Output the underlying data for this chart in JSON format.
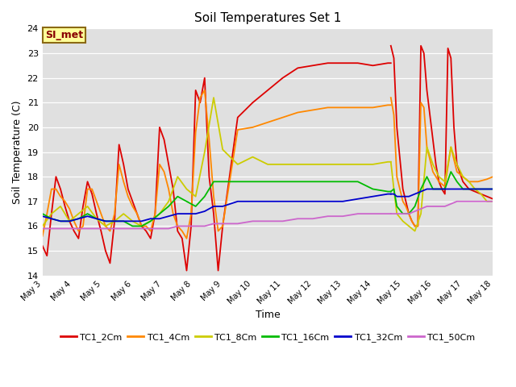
{
  "title": "Soil Temperatures Set 1",
  "xlabel": "Time",
  "ylabel": "Soil Temperature (C)",
  "ylim": [
    14.0,
    24.0
  ],
  "yticks": [
    14.0,
    15.0,
    16.0,
    17.0,
    18.0,
    19.0,
    20.0,
    21.0,
    22.0,
    23.0,
    24.0
  ],
  "bg_color": "#e0e0e0",
  "annotation_text": "SI_met",
  "annotation_bg": "#ffff99",
  "annotation_border": "#8b6914",
  "series": {
    "TC1_2Cm": {
      "color": "#dd0000",
      "segments": [
        {
          "x": [
            3.0,
            3.15,
            3.3,
            3.45,
            3.6,
            3.75,
            3.9,
            4.05,
            4.2,
            4.35,
            4.5,
            4.65,
            4.8,
            4.95,
            5.1,
            5.25,
            5.4,
            5.55,
            5.7,
            5.85,
            6.0,
            6.15,
            6.3,
            6.45,
            6.6,
            6.75,
            6.9,
            7.05,
            7.2,
            7.35,
            7.5,
            7.65,
            7.8,
            7.95,
            8.1,
            8.25,
            8.4,
            8.55,
            8.7,
            8.85,
            9.0
          ],
          "y": [
            15.2,
            14.8,
            16.5,
            18.0,
            17.5,
            16.8,
            16.2,
            15.8,
            15.5,
            16.8,
            17.8,
            17.3,
            16.5,
            15.8,
            15.0,
            14.5,
            16.2,
            19.3,
            18.5,
            17.5,
            17.0,
            16.5,
            16.0,
            15.8,
            15.5,
            16.5,
            20.0,
            19.5,
            18.5,
            17.5,
            15.8,
            15.5,
            14.2,
            16.0,
            21.5,
            21.0,
            22.0,
            18.0,
            16.5,
            14.2,
            16.0
          ]
        },
        {
          "x": [
            9.0,
            9.5,
            10.0,
            10.5,
            11.0,
            11.5,
            12.0,
            12.5,
            13.0,
            13.5,
            14.0,
            14.5,
            14.6
          ],
          "y": [
            16.0,
            20.4,
            21.0,
            21.5,
            22.0,
            22.4,
            22.5,
            22.6,
            22.6,
            22.6,
            22.5,
            22.6,
            22.6
          ]
        },
        {
          "x": [
            14.6,
            14.7,
            14.8,
            15.0,
            15.1,
            15.2,
            15.3,
            15.4,
            15.5,
            15.6,
            15.7,
            15.8,
            16.0,
            16.1,
            16.2,
            16.3,
            16.4,
            16.5,
            16.6,
            16.7,
            16.8,
            17.0,
            17.2,
            17.4,
            17.6,
            17.8,
            18.0
          ],
          "y": [
            23.3,
            22.8,
            20.0,
            17.5,
            17.0,
            16.5,
            16.2,
            16.0,
            16.0,
            23.3,
            23.0,
            21.5,
            19.5,
            18.5,
            17.8,
            17.5,
            17.3,
            23.2,
            22.8,
            20.0,
            18.5,
            17.8,
            17.5,
            17.4,
            17.3,
            17.2,
            17.1
          ]
        }
      ]
    },
    "TC1_4Cm": {
      "color": "#ff8800",
      "segments": [
        {
          "x": [
            3.0,
            3.15,
            3.3,
            3.45,
            3.6,
            3.75,
            3.9,
            4.05,
            4.2,
            4.35,
            4.5,
            4.65,
            4.8,
            4.95,
            5.1,
            5.25,
            5.4,
            5.55,
            5.7,
            5.85,
            6.0,
            6.15,
            6.3,
            6.45,
            6.6,
            6.75,
            6.9,
            7.05,
            7.2,
            7.35,
            7.5,
            7.65,
            7.8,
            7.95,
            8.1,
            8.25,
            8.4,
            8.55,
            8.7,
            8.85,
            9.0
          ],
          "y": [
            15.6,
            16.5,
            17.5,
            17.5,
            17.2,
            17.0,
            16.7,
            16.2,
            15.8,
            16.0,
            17.5,
            17.5,
            17.0,
            16.5,
            16.0,
            15.8,
            16.5,
            18.5,
            17.8,
            17.2,
            16.8,
            16.5,
            16.0,
            16.0,
            15.8,
            16.5,
            18.5,
            18.2,
            17.5,
            16.5,
            16.0,
            15.8,
            15.5,
            16.5,
            19.8,
            21.2,
            21.5,
            19.5,
            17.2,
            15.8,
            16.0
          ]
        },
        {
          "x": [
            9.0,
            9.5,
            10.0,
            10.5,
            11.0,
            11.5,
            12.0,
            12.5,
            13.0,
            13.5,
            14.0,
            14.5,
            14.6
          ],
          "y": [
            16.0,
            19.9,
            20.0,
            20.2,
            20.4,
            20.6,
            20.7,
            20.8,
            20.8,
            20.8,
            20.8,
            20.9,
            20.9
          ]
        },
        {
          "x": [
            14.6,
            14.7,
            14.8,
            15.0,
            15.1,
            15.2,
            15.3,
            15.4,
            15.5,
            15.6,
            15.7,
            15.8,
            16.0,
            16.2,
            16.4,
            16.6,
            16.8,
            17.0,
            17.2,
            17.5,
            17.8,
            18.0
          ],
          "y": [
            21.2,
            20.5,
            18.0,
            17.0,
            16.8,
            16.5,
            16.2,
            16.0,
            16.0,
            21.0,
            20.8,
            19.2,
            18.2,
            17.8,
            17.6,
            19.2,
            18.2,
            18.0,
            17.8,
            17.8,
            17.9,
            18.0
          ]
        }
      ]
    },
    "TC1_8Cm": {
      "color": "#cccc00",
      "segments": [
        {
          "x": [
            3.0,
            3.3,
            3.6,
            3.9,
            4.2,
            4.5,
            4.8,
            5.1,
            5.4,
            5.7,
            6.0,
            6.3,
            6.6,
            6.9,
            7.2,
            7.5,
            7.8,
            8.1,
            8.4,
            8.7,
            9.0,
            9.5,
            10.0,
            10.5,
            11.0,
            11.5,
            12.0,
            12.5,
            13.0,
            13.5,
            14.0,
            14.5,
            14.6
          ],
          "y": [
            16.0,
            16.5,
            16.8,
            16.2,
            16.5,
            16.8,
            16.3,
            16.0,
            16.2,
            16.5,
            16.2,
            16.0,
            16.2,
            16.5,
            17.0,
            18.0,
            17.5,
            17.2,
            19.0,
            21.2,
            19.1,
            18.5,
            18.8,
            18.5,
            18.5,
            18.5,
            18.5,
            18.5,
            18.5,
            18.5,
            18.5,
            18.6,
            18.6
          ]
        },
        {
          "x": [
            14.6,
            14.7,
            14.8,
            15.0,
            15.2,
            15.4,
            15.6,
            15.8,
            16.0,
            16.2,
            16.4,
            16.6,
            16.8,
            17.0,
            17.2,
            17.4,
            17.6,
            17.8,
            18.0
          ],
          "y": [
            18.6,
            17.5,
            16.5,
            16.2,
            16.0,
            15.8,
            16.5,
            19.2,
            18.5,
            18.0,
            17.8,
            19.2,
            18.5,
            18.0,
            17.8,
            17.5,
            17.3,
            17.0,
            17.0
          ]
        }
      ]
    },
    "TC1_16Cm": {
      "color": "#00bb00",
      "segments": [
        {
          "x": [
            3.0,
            3.3,
            3.6,
            3.9,
            4.2,
            4.5,
            4.8,
            5.1,
            5.4,
            5.7,
            6.0,
            6.3,
            6.6,
            6.9,
            7.2,
            7.5,
            7.8,
            8.1,
            8.4,
            8.7,
            9.0,
            9.5,
            10.0,
            10.5,
            11.0,
            11.5,
            12.0,
            12.5,
            13.0,
            13.5,
            14.0,
            14.5,
            14.6
          ],
          "y": [
            16.5,
            16.3,
            16.2,
            16.2,
            16.3,
            16.5,
            16.3,
            16.2,
            16.2,
            16.2,
            16.0,
            16.0,
            16.2,
            16.5,
            16.8,
            17.2,
            17.0,
            16.8,
            17.2,
            17.8,
            17.8,
            17.8,
            17.8,
            17.8,
            17.8,
            17.8,
            17.8,
            17.8,
            17.8,
            17.8,
            17.5,
            17.4,
            17.4
          ]
        },
        {
          "x": [
            14.6,
            14.7,
            14.8,
            15.0,
            15.2,
            15.4,
            15.6,
            15.8,
            16.0,
            16.2,
            16.4,
            16.6,
            16.8,
            17.0,
            17.2,
            17.5,
            17.8,
            18.0
          ],
          "y": [
            17.4,
            17.5,
            16.8,
            16.5,
            16.5,
            16.8,
            17.5,
            18.0,
            17.5,
            17.5,
            17.5,
            18.2,
            17.8,
            17.5,
            17.5,
            17.5,
            17.5,
            17.5
          ]
        }
      ]
    },
    "TC1_32Cm": {
      "color": "#0000cc",
      "segments": [
        {
          "x": [
            3.0,
            3.3,
            3.6,
            3.9,
            4.2,
            4.5,
            4.8,
            5.1,
            5.4,
            5.7,
            6.0,
            6.3,
            6.6,
            6.9,
            7.2,
            7.5,
            7.8,
            8.1,
            8.4,
            8.7,
            9.0,
            9.5,
            10.0,
            10.5,
            11.0,
            11.5,
            12.0,
            12.5,
            13.0,
            13.5,
            14.0,
            14.5,
            14.6
          ],
          "y": [
            16.4,
            16.3,
            16.2,
            16.2,
            16.3,
            16.4,
            16.3,
            16.2,
            16.2,
            16.2,
            16.2,
            16.2,
            16.3,
            16.3,
            16.4,
            16.5,
            16.5,
            16.5,
            16.6,
            16.8,
            16.8,
            17.0,
            17.0,
            17.0,
            17.0,
            17.0,
            17.0,
            17.0,
            17.0,
            17.1,
            17.2,
            17.3,
            17.3
          ]
        },
        {
          "x": [
            14.6,
            14.7,
            14.8,
            15.0,
            15.2,
            15.4,
            15.6,
            15.8,
            16.0,
            16.2,
            16.4,
            16.6,
            16.8,
            17.0,
            17.2,
            17.5,
            17.8,
            18.0
          ],
          "y": [
            17.3,
            17.3,
            17.2,
            17.2,
            17.2,
            17.3,
            17.4,
            17.5,
            17.5,
            17.5,
            17.5,
            17.5,
            17.5,
            17.5,
            17.5,
            17.5,
            17.5,
            17.5
          ]
        }
      ]
    },
    "TC1_50Cm": {
      "color": "#cc66cc",
      "segments": [
        {
          "x": [
            3.0,
            3.3,
            3.6,
            3.9,
            4.2,
            4.5,
            4.8,
            5.1,
            5.4,
            5.7,
            6.0,
            6.3,
            6.6,
            6.9,
            7.2,
            7.5,
            7.8,
            8.1,
            8.4,
            8.7,
            9.0,
            9.5,
            10.0,
            10.5,
            11.0,
            11.5,
            12.0,
            12.5,
            13.0,
            13.5,
            14.0,
            14.5,
            14.6
          ],
          "y": [
            15.9,
            15.9,
            15.9,
            15.9,
            15.9,
            15.9,
            15.9,
            15.9,
            15.9,
            15.9,
            15.9,
            15.9,
            15.9,
            15.9,
            15.9,
            16.0,
            16.0,
            16.0,
            16.0,
            16.1,
            16.1,
            16.1,
            16.2,
            16.2,
            16.2,
            16.3,
            16.3,
            16.4,
            16.4,
            16.5,
            16.5,
            16.5,
            16.5
          ]
        },
        {
          "x": [
            14.6,
            14.7,
            14.8,
            15.0,
            15.2,
            15.4,
            15.6,
            15.8,
            16.0,
            16.2,
            16.4,
            16.6,
            16.8,
            17.0,
            17.2,
            17.5,
            17.8,
            18.0
          ],
          "y": [
            16.5,
            16.5,
            16.5,
            16.5,
            16.5,
            16.6,
            16.7,
            16.8,
            16.8,
            16.8,
            16.8,
            16.9,
            17.0,
            17.0,
            17.0,
            17.0,
            17.0,
            17.0
          ]
        }
      ]
    }
  },
  "xtick_labels": [
    "May 3",
    "May 4",
    "May 5",
    "May 6",
    "May 7",
    "May 8",
    "May 9",
    "May 10",
    "May 11",
    "May 12",
    "May 13",
    "May 14",
    "May 15",
    "May 16",
    "May 17",
    "May 18"
  ],
  "xtick_positions": [
    3,
    4,
    5,
    6,
    7,
    8,
    9,
    10,
    11,
    12,
    13,
    14,
    15,
    16,
    17,
    18
  ],
  "legend_order": [
    "TC1_2Cm",
    "TC1_4Cm",
    "TC1_8Cm",
    "TC1_16Cm",
    "TC1_32Cm",
    "TC1_50Cm"
  ]
}
